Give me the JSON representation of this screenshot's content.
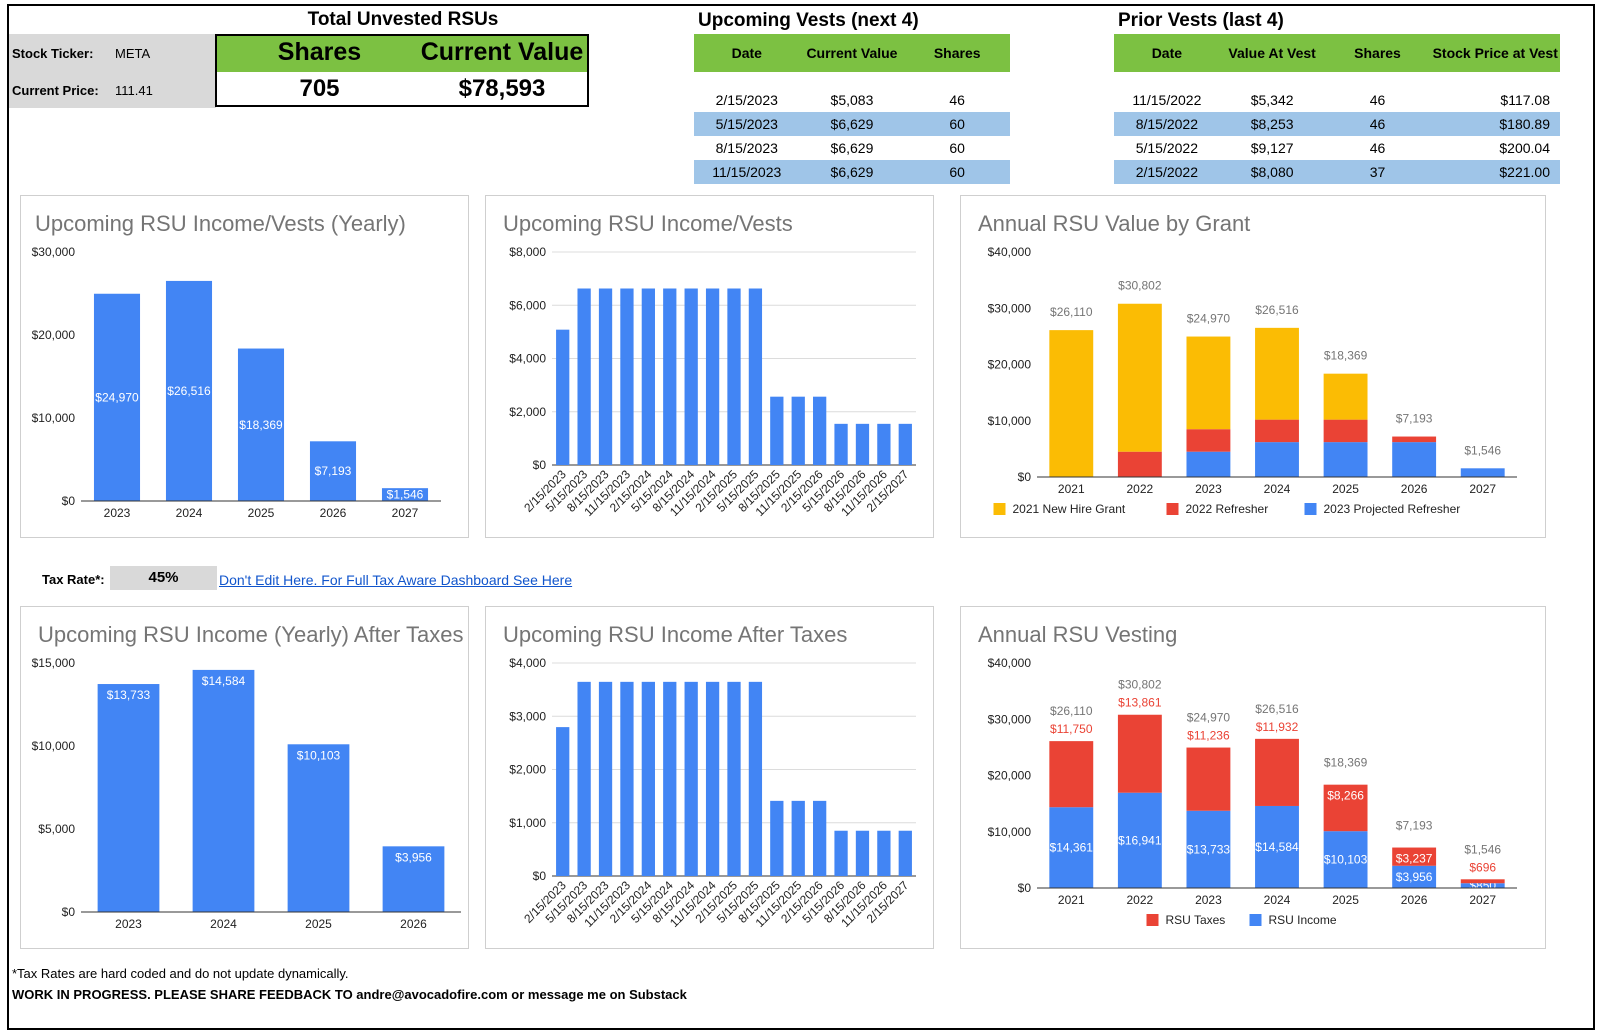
{
  "ticker_panel": {
    "ticker_label": "Stock Ticker:",
    "ticker_value": "META",
    "price_label": "Current Price:",
    "price_value": "111.41"
  },
  "unvested": {
    "title": "Total Unvested RSUs",
    "shares_header": "Shares",
    "value_header": "Current Value",
    "shares": "705",
    "value": "$78,593"
  },
  "upcoming_vests": {
    "title": "Upcoming Vests (next 4)",
    "headers": [
      "Date",
      "Current Value",
      "Shares"
    ],
    "rows": [
      [
        "2/15/2023",
        "$5,083",
        "46"
      ],
      [
        "5/15/2023",
        "$6,629",
        "60"
      ],
      [
        "8/15/2023",
        "$6,629",
        "60"
      ],
      [
        "11/15/2023",
        "$6,629",
        "60"
      ]
    ]
  },
  "prior_vests": {
    "title": "Prior Vests (last 4)",
    "headers": [
      "Date",
      "Value At Vest",
      "Shares",
      "Stock Price at Vest"
    ],
    "rows": [
      [
        "11/15/2022",
        "$5,342",
        "46",
        "$117.08"
      ],
      [
        "8/15/2022",
        "$8,253",
        "46",
        "$180.89"
      ],
      [
        "5/15/2022",
        "$9,127",
        "46",
        "$200.04"
      ],
      [
        "2/15/2022",
        "$8,080",
        "37",
        "$221.00"
      ]
    ]
  },
  "tax": {
    "label": "Tax Rate*:",
    "value": "45%",
    "link_text": "Don't Edit Here. For Full Tax Aware Dashboard See Here"
  },
  "footer": {
    "note": "*Tax Rates are hard coded and do not update dynamically.",
    "feedback": "WORK IN PROGRESS. PLEASE SHARE FEEDBACK TO andre@avocadofire.com or message me on Substack"
  },
  "colors": {
    "blue": "#4285f4",
    "red": "#ea4335",
    "yellow": "#fbbc04",
    "green_header": "#7cc142",
    "light_blue_row": "#9fc5e8"
  },
  "chart_data": [
    {
      "id": "c1",
      "type": "bar",
      "title": "Upcoming RSU Income/Vests (Yearly)",
      "categories": [
        "2023",
        "2024",
        "2025",
        "2026",
        "2027"
      ],
      "values": [
        24970,
        26516,
        18369,
        7193,
        1546
      ],
      "data_labels": [
        "$24,970",
        "$26,516",
        "$18,369",
        "$7,193",
        "$1,546"
      ],
      "ylim": [
        0,
        30000
      ],
      "yticks": [
        0,
        10000,
        20000,
        30000
      ],
      "ytick_labels": [
        "$0",
        "$10,000",
        "$20,000",
        "$30,000"
      ],
      "grid": false
    },
    {
      "id": "c2",
      "type": "bar",
      "title": "Upcoming RSU Income/Vests",
      "categories": [
        "2/15/2023",
        "5/15/2023",
        "8/15/2023",
        "11/15/2023",
        "2/15/2024",
        "5/15/2024",
        "8/15/2024",
        "11/15/2024",
        "2/15/2025",
        "5/15/2025",
        "8/15/2025",
        "11/15/2025",
        "2/15/2026",
        "5/15/2026",
        "8/15/2026",
        "11/15/2026",
        "2/15/2027"
      ],
      "values": [
        5083,
        6629,
        6629,
        6629,
        6629,
        6629,
        6629,
        6629,
        6629,
        6629,
        2566,
        2566,
        2566,
        1546,
        1546,
        1546,
        1546
      ],
      "ylim": [
        0,
        8000
      ],
      "yticks": [
        0,
        2000,
        4000,
        6000,
        8000
      ],
      "ytick_labels": [
        "$0",
        "$2,000",
        "$4,000",
        "$6,000",
        "$8,000"
      ],
      "grid": true
    },
    {
      "id": "c3",
      "type": "bar",
      "stacked": true,
      "title": "Annual RSU Value by Grant",
      "categories": [
        "2021",
        "2022",
        "2023",
        "2024",
        "2025",
        "2026",
        "2027"
      ],
      "series": [
        {
          "name": "2023 Projected Refresher",
          "color": "#4285f4",
          "values": [
            0,
            0,
            4500,
            6200,
            6200,
            6200,
            1546
          ]
        },
        {
          "name": "2022 Refresher",
          "color": "#ea4335",
          "values": [
            0,
            4500,
            4000,
            4000,
            4000,
            993,
            0
          ]
        },
        {
          "name": "2021 New Hire Grant",
          "color": "#fbbc04",
          "values": [
            26110,
            26302,
            16470,
            16316,
            8169,
            0,
            0
          ]
        }
      ],
      "totals": [
        26110,
        30802,
        24970,
        26516,
        18369,
        7193,
        1546
      ],
      "total_labels": [
        "$26,110",
        "$30,802",
        "$24,970",
        "$26,516",
        "$18,369",
        "$7,193",
        "$1,546"
      ],
      "legend": [
        "2021 New Hire Grant",
        "2022 Refresher",
        "2023 Projected Refresher"
      ],
      "legend_position": "bottom",
      "ylim": [
        0,
        40000
      ],
      "yticks": [
        0,
        10000,
        20000,
        30000,
        40000
      ],
      "ytick_labels": [
        "$0",
        "$10,000",
        "$20,000",
        "$30,000",
        "$40,000"
      ]
    },
    {
      "id": "c4",
      "type": "bar",
      "title": "Upcoming RSU Income (Yearly) After Taxes",
      "categories": [
        "2023",
        "2024",
        "2025",
        "2026"
      ],
      "values": [
        13733,
        14584,
        10103,
        3956
      ],
      "data_labels": [
        "$13,733",
        "$14,584",
        "$10,103",
        "$3,956"
      ],
      "ylim": [
        0,
        15000
      ],
      "yticks": [
        0,
        5000,
        10000,
        15000
      ],
      "ytick_labels": [
        "$0",
        "$5,000",
        "$10,000",
        "$15,000"
      ],
      "grid": false
    },
    {
      "id": "c5",
      "type": "bar",
      "title": "Upcoming RSU Income After Taxes",
      "categories": [
        "2/15/2023",
        "5/15/2023",
        "8/15/2023",
        "11/15/2023",
        "2/15/2024",
        "5/15/2024",
        "8/15/2024",
        "11/15/2024",
        "2/15/2025",
        "5/15/2025",
        "8/15/2025",
        "11/15/2025",
        "2/15/2026",
        "5/15/2026",
        "8/15/2026",
        "11/15/2026",
        "2/15/2027"
      ],
      "values": [
        2796,
        3646,
        3646,
        3646,
        3646,
        3646,
        3646,
        3646,
        3646,
        3646,
        1411,
        1411,
        1411,
        850,
        850,
        850,
        850
      ],
      "ylim": [
        0,
        4000
      ],
      "yticks": [
        0,
        1000,
        2000,
        3000,
        4000
      ],
      "ytick_labels": [
        "$0",
        "$1,000",
        "$2,000",
        "$3,000",
        "$4,000"
      ],
      "grid": true
    },
    {
      "id": "c6",
      "type": "bar",
      "stacked": true,
      "title": "Annual RSU Vesting",
      "categories": [
        "2021",
        "2022",
        "2023",
        "2024",
        "2025",
        "2026",
        "2027"
      ],
      "series": [
        {
          "name": "RSU Income",
          "color": "#4285f4",
          "values": [
            14361,
            16941,
            13733,
            14584,
            10103,
            3956,
            850
          ],
          "labels": [
            "$14,361",
            "$16,941",
            "$13,733",
            "$14,584",
            "$10,103",
            "$3,956",
            "$850"
          ]
        },
        {
          "name": "RSU Taxes",
          "color": "#ea4335",
          "values": [
            11750,
            13861,
            11236,
            11932,
            8266,
            3237,
            696
          ],
          "labels": [
            "$11,750",
            "$13,861",
            "$11,236",
            "$11,932",
            "$8,266",
            "$3,237",
            "$696"
          ]
        }
      ],
      "totals": [
        26110,
        30802,
        24970,
        26516,
        18369,
        7193,
        1546
      ],
      "total_labels": [
        "$26,110",
        "$30,802",
        "$24,970",
        "$26,516",
        "$18,369",
        "$7,193",
        "$1,546"
      ],
      "legend": [
        "RSU Taxes",
        "RSU Income"
      ],
      "legend_position": "bottom",
      "ylim": [
        0,
        40000
      ],
      "yticks": [
        0,
        10000,
        20000,
        30000,
        40000
      ],
      "ytick_labels": [
        "$0",
        "$10,000",
        "$20,000",
        "$30,000",
        "$40,000"
      ]
    }
  ]
}
